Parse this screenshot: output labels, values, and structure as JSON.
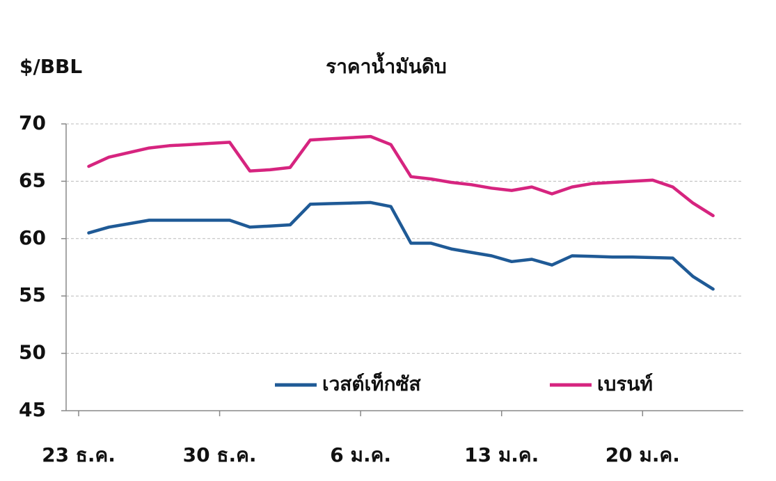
{
  "chart_data": {
    "type": "line",
    "title": "ราคาน้ำมันดิบ",
    "y_label": "$/BBL",
    "categories": [
      "23 ธ.ค.",
      null,
      null,
      null,
      null,
      null,
      null,
      "30 ธ.ค.",
      null,
      null,
      null,
      null,
      null,
      null,
      "6 ม.ค.",
      null,
      null,
      null,
      null,
      null,
      null,
      "13 ม.ค.",
      null,
      null,
      null,
      null,
      null,
      null,
      "20 ม.ค.",
      null,
      null,
      null,
      null
    ],
    "series": [
      {
        "name": "เวสต์เท็กซัส",
        "color": "#1f5a96",
        "values": [
          60.5,
          61.0,
          61.3,
          61.6,
          61.6,
          61.6,
          61.6,
          61.6,
          61.0,
          61.1,
          61.2,
          63.0,
          63.05,
          63.1,
          63.15,
          62.8,
          59.6,
          59.6,
          59.1,
          58.8,
          58.5,
          58.0,
          58.2,
          57.7,
          58.5,
          58.45,
          58.4,
          58.4,
          58.35,
          58.3,
          56.7,
          55.6,
          null
        ]
      },
      {
        "name": "เบรนท์",
        "color": "#d6247f",
        "values": [
          66.3,
          67.1,
          67.5,
          67.9,
          68.1,
          68.2,
          68.3,
          68.4,
          65.9,
          66.0,
          66.2,
          68.6,
          68.7,
          68.8,
          68.9,
          68.2,
          65.4,
          65.2,
          64.9,
          64.7,
          64.4,
          64.2,
          64.5,
          63.9,
          64.5,
          64.8,
          64.9,
          65.0,
          65.1,
          64.5,
          63.1,
          62.0,
          null
        ]
      }
    ],
    "ylim": [
      45,
      70
    ],
    "yticks": [
      45,
      50,
      55,
      60,
      65,
      70
    ],
    "grid": true
  }
}
